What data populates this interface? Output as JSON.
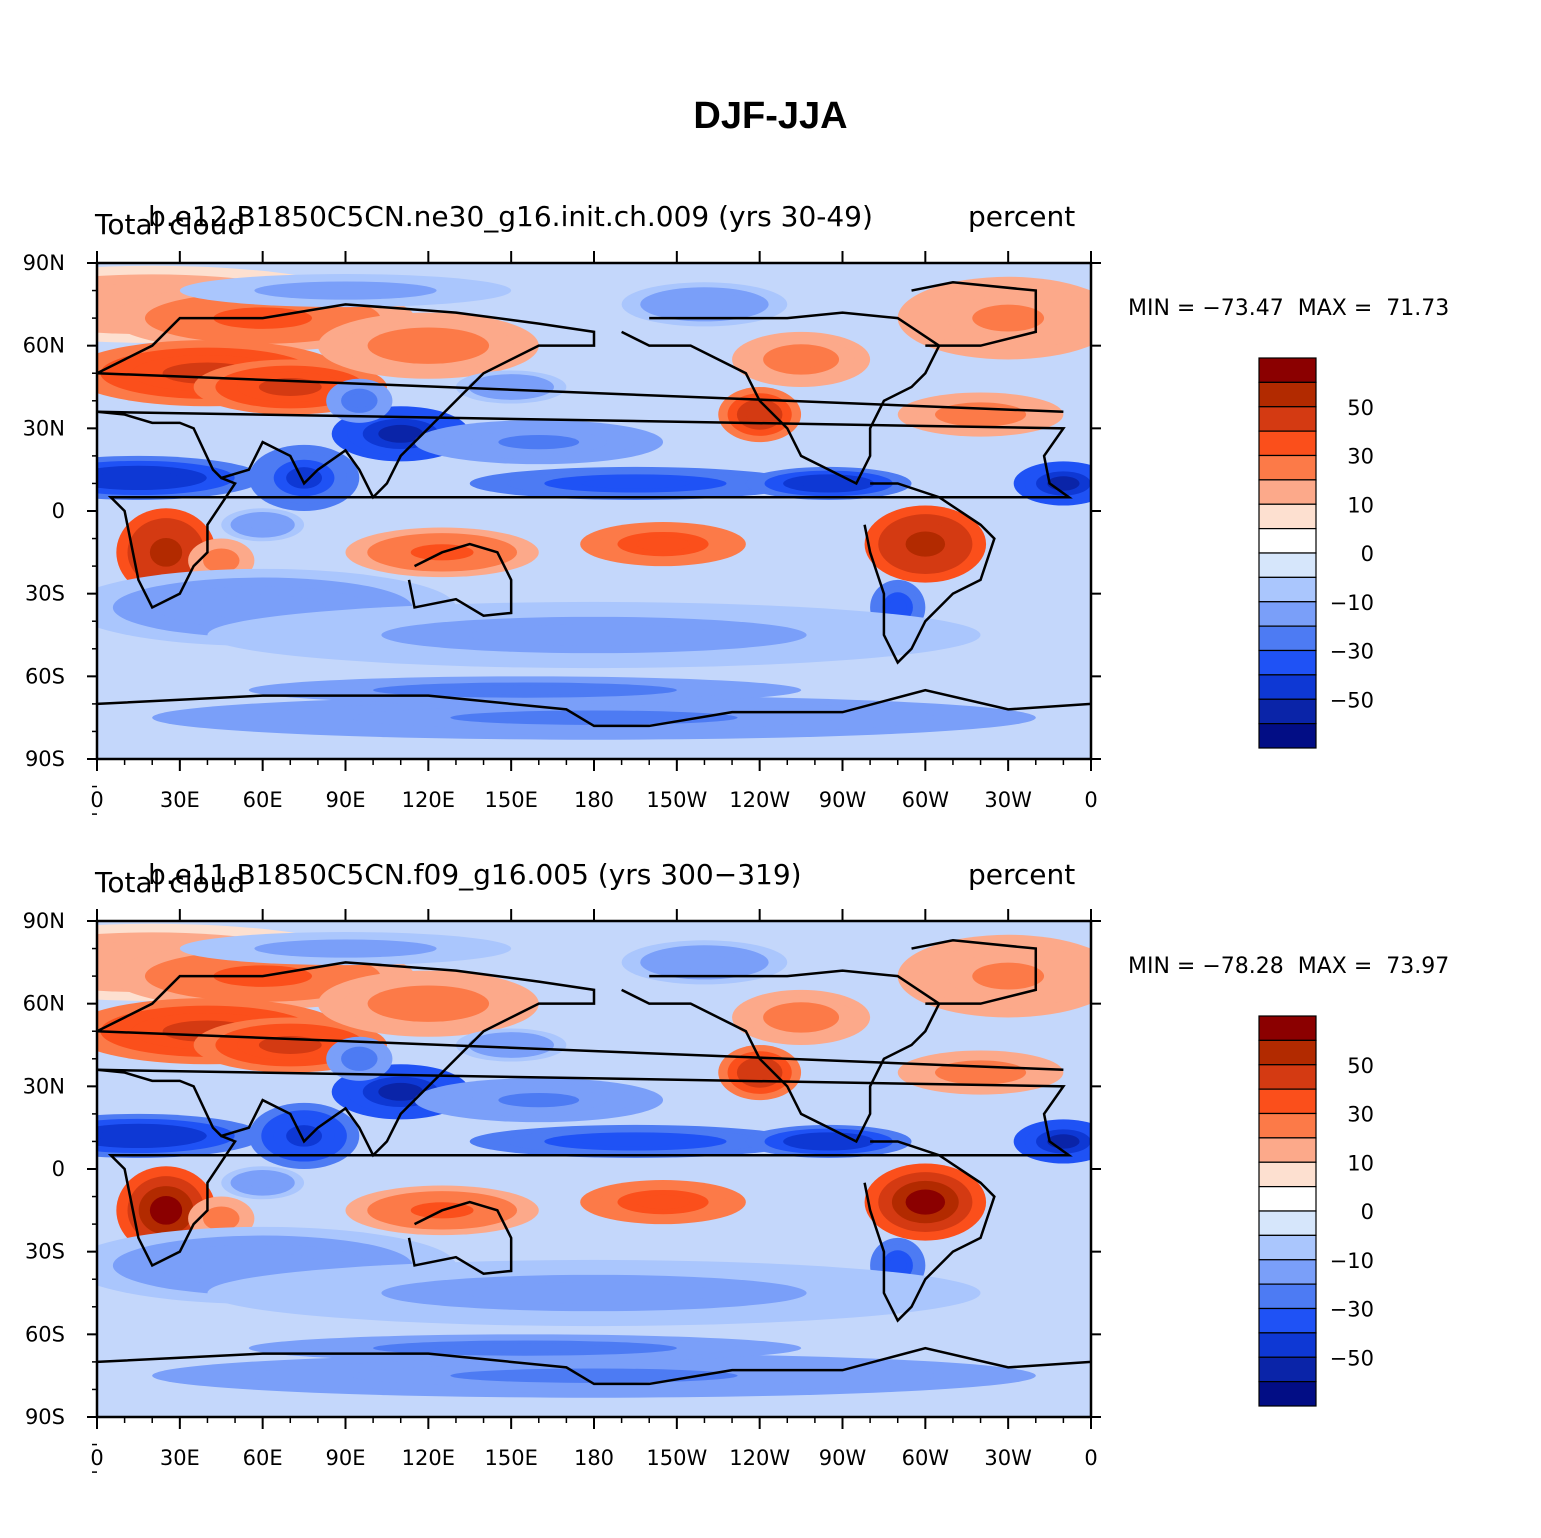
{
  "title": "DJF-JJA",
  "axes": {
    "lat_labels": [
      "90N",
      "60N",
      "30N",
      "0",
      "30S",
      "60S",
      "90S"
    ],
    "lon_labels": [
      "0",
      "30E",
      "60E",
      "90E",
      "120E",
      "150E",
      "180",
      "150W",
      "120W",
      "90W",
      "60W",
      "30W",
      "0"
    ]
  },
  "colorbar": {
    "labels": [
      "50",
      "30",
      "10",
      "0",
      "−10",
      "−30",
      "−50"
    ],
    "colors": [
      "#8b0000",
      "#b22a00",
      "#d43a12",
      "#fb4f1b",
      "#fc7a48",
      "#fca98a",
      "#fde0d0",
      "#ffffff",
      "#d6e6fb",
      "#aac6fd",
      "#7a9ff9",
      "#4d7bf3",
      "#1f52f5",
      "#0e38d4",
      "#0a24a8",
      "#020d85"
    ]
  },
  "panels": [
    {
      "var_label": "Total cloud",
      "case_label": "b.e12.B1850C5CN.ne30_g16.init.ch.009 (yrs 30-49)",
      "units": "percent",
      "min_text": "MIN = −73.47",
      "max_text": "MAX =  71.73"
    },
    {
      "var_label": "Total cloud",
      "case_label": "b.e11.B1850C5CN.f09_g16.005 (yrs 300−319)",
      "units": "percent",
      "min_text": "MIN = −78.28",
      "max_text": "MAX =  73.97"
    }
  ],
  "chart_data": {
    "type": "heatmap",
    "title": "DJF-JJA",
    "xlim": [
      0,
      360
    ],
    "ylim": [
      -90,
      90
    ],
    "levels": [
      -60,
      -50,
      -40,
      -30,
      -20,
      -10,
      -5,
      0,
      5,
      10,
      20,
      30,
      40,
      50,
      60
    ],
    "panels": [
      {
        "name": "b.e12.B1850C5CN.ne30_g16.init.ch.009 (yrs 30-49)",
        "min": -73.47,
        "max": 71.73
      },
      {
        "name": "b.e11.B1850C5CN.f09_g16.005 (yrs 300−319)",
        "min": -78.28,
        "max": 73.97
      }
    ]
  }
}
